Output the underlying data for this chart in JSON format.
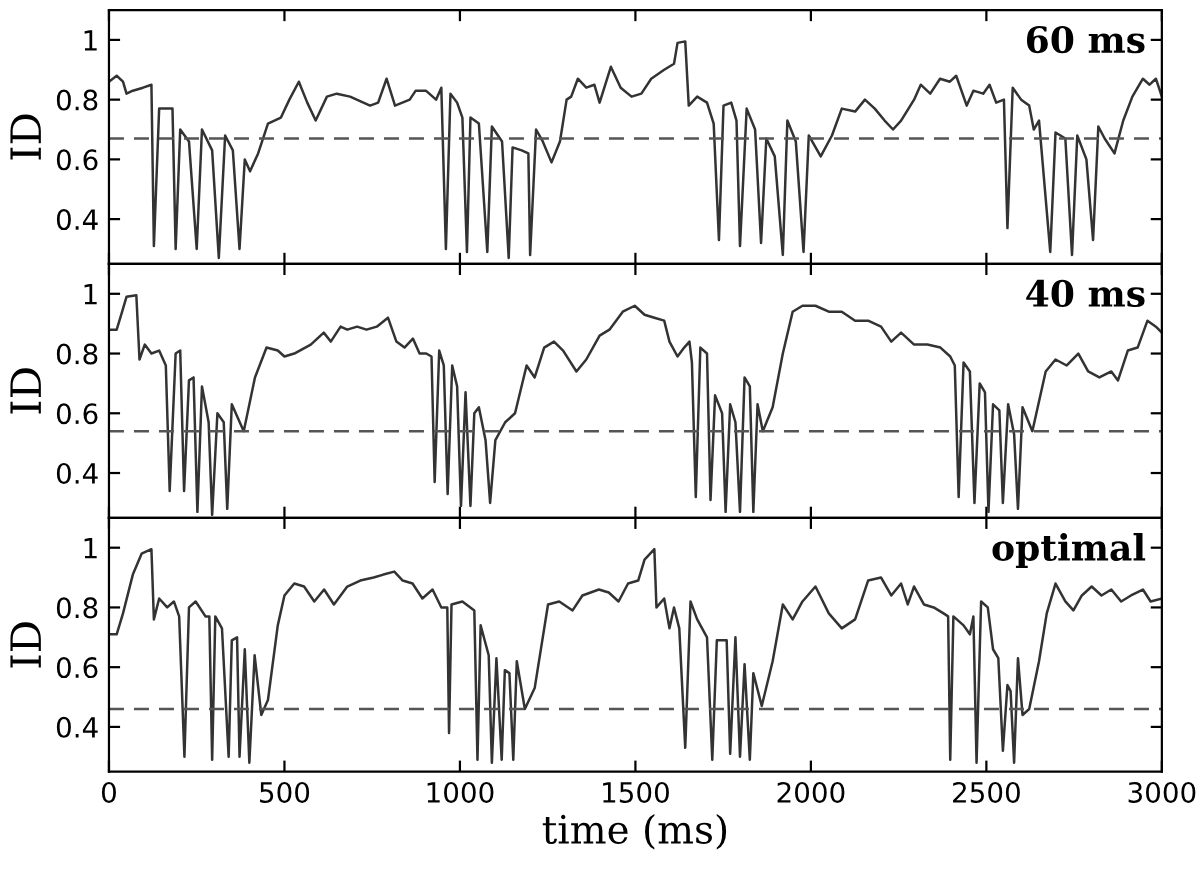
{
  "chart_data": [
    {
      "type": "line",
      "ylabel": "ID",
      "annotations": [
        "60 ms"
      ],
      "color": "#333333",
      "xlim": [
        0,
        3000
      ],
      "xticks": [
        0,
        500,
        1000,
        1500,
        2000,
        2500,
        3000
      ],
      "ylim": [
        0.25,
        1.1
      ],
      "yticks": [
        0.4,
        0.6,
        0.8,
        1
      ],
      "tick_labels": "y",
      "ref_lines": [
        {
          "axis": "y",
          "value": 0.67,
          "color": "#555555",
          "line_style": "dashed"
        }
      ],
      "x": [
        0,
        22,
        40,
        50,
        68,
        97,
        121,
        128,
        143,
        181,
        190,
        203,
        228,
        250,
        265,
        294,
        313,
        331,
        353,
        372,
        387,
        402,
        425,
        453,
        490,
        514,
        541,
        565,
        589,
        621,
        649,
        687,
        744,
        767,
        791,
        815,
        857,
        874,
        903,
        932,
        947,
        960,
        973,
        992,
        1007,
        1020,
        1030,
        1054,
        1078,
        1091,
        1120,
        1139,
        1150,
        1176,
        1195,
        1200,
        1217,
        1236,
        1261,
        1285,
        1304,
        1317,
        1336,
        1360,
        1383,
        1398,
        1430,
        1458,
        1489,
        1517,
        1545,
        1582,
        1610,
        1620,
        1642,
        1652,
        1676,
        1704,
        1723,
        1738,
        1751,
        1773,
        1788,
        1798,
        1817,
        1841,
        1858,
        1873,
        1897,
        1920,
        1933,
        1957,
        1979,
        1994,
        2028,
        2060,
        2088,
        2126,
        2154,
        2182,
        2210,
        2234,
        2257,
        2294,
        2313,
        2340,
        2368,
        2396,
        2414,
        2444,
        2463,
        2491,
        2509,
        2528,
        2550,
        2560,
        2575,
        2599,
        2622,
        2635,
        2650,
        2682,
        2697,
        2725,
        2744,
        2759,
        2785,
        2804,
        2819,
        2837,
        2865,
        2890,
        2916,
        2946,
        2965,
        2983,
        3000
      ],
      "values": [
        0.86,
        0.88,
        0.86,
        0.82,
        0.83,
        0.84,
        0.85,
        0.31,
        0.77,
        0.77,
        0.3,
        0.7,
        0.66,
        0.3,
        0.7,
        0.63,
        0.27,
        0.68,
        0.63,
        0.3,
        0.6,
        0.56,
        0.62,
        0.72,
        0.74,
        0.8,
        0.86,
        0.79,
        0.73,
        0.81,
        0.82,
        0.81,
        0.78,
        0.79,
        0.87,
        0.78,
        0.8,
        0.83,
        0.83,
        0.8,
        0.84,
        0.3,
        0.82,
        0.79,
        0.74,
        0.29,
        0.74,
        0.72,
        0.29,
        0.71,
        0.66,
        0.27,
        0.64,
        0.63,
        0.62,
        0.28,
        0.7,
        0.66,
        0.59,
        0.66,
        0.8,
        0.81,
        0.87,
        0.84,
        0.85,
        0.79,
        0.91,
        0.84,
        0.81,
        0.82,
        0.87,
        0.9,
        0.92,
        0.99,
        0.995,
        0.78,
        0.81,
        0.79,
        0.72,
        0.33,
        0.78,
        0.79,
        0.73,
        0.31,
        0.77,
        0.7,
        0.32,
        0.67,
        0.61,
        0.28,
        0.73,
        0.66,
        0.29,
        0.68,
        0.61,
        0.68,
        0.77,
        0.76,
        0.8,
        0.77,
        0.73,
        0.7,
        0.73,
        0.8,
        0.85,
        0.82,
        0.87,
        0.86,
        0.88,
        0.78,
        0.83,
        0.82,
        0.85,
        0.79,
        0.8,
        0.37,
        0.84,
        0.8,
        0.78,
        0.7,
        0.73,
        0.29,
        0.69,
        0.67,
        0.28,
        0.68,
        0.6,
        0.33,
        0.71,
        0.67,
        0.62,
        0.73,
        0.81,
        0.87,
        0.85,
        0.87,
        0.81
      ]
    },
    {
      "type": "line",
      "ylabel": "ID",
      "annotations": [
        "40 ms"
      ],
      "color": "#333333",
      "xlim": [
        0,
        3000
      ],
      "xticks": [
        0,
        500,
        1000,
        1500,
        2000,
        2500,
        3000
      ],
      "ylim": [
        0.25,
        1.1
      ],
      "yticks": [
        0.4,
        0.6,
        0.8,
        1
      ],
      "tick_labels": "y",
      "ref_lines": [
        {
          "axis": "y",
          "value": 0.54,
          "color": "#555555",
          "line_style": "dashed"
        }
      ],
      "x": [
        0,
        22,
        35,
        50,
        78,
        87,
        102,
        121,
        143,
        162,
        173,
        190,
        203,
        214,
        228,
        241,
        252,
        265,
        284,
        294,
        309,
        327,
        337,
        350,
        384,
        416,
        449,
        481,
        500,
        528,
        575,
        612,
        632,
        660,
        679,
        707,
        734,
        763,
        795,
        819,
        842,
        866,
        885,
        904,
        919,
        928,
        941,
        954,
        965,
        978,
        992,
        1003,
        1016,
        1030,
        1041,
        1054,
        1073,
        1086,
        1101,
        1129,
        1157,
        1190,
        1213,
        1240,
        1268,
        1294,
        1332,
        1360,
        1398,
        1426,
        1464,
        1498,
        1526,
        1554,
        1582,
        1597,
        1620,
        1639,
        1654,
        1661,
        1672,
        1685,
        1704,
        1714,
        1727,
        1747,
        1757,
        1770,
        1785,
        1798,
        1811,
        1826,
        1836,
        1848,
        1863,
        1891,
        1920,
        1948,
        1976,
        2013,
        2051,
        2088,
        2126,
        2163,
        2200,
        2229,
        2257,
        2294,
        2332,
        2369,
        2397,
        2410,
        2421,
        2435,
        2453,
        2466,
        2481,
        2496,
        2506,
        2519,
        2537,
        2547,
        2562,
        2579,
        2590,
        2603,
        2631,
        2669,
        2697,
        2729,
        2762,
        2790,
        2822,
        2856,
        2875,
        2903,
        2931,
        2959,
        2983,
        3000
      ],
      "values": [
        0.88,
        0.88,
        0.93,
        0.99,
        0.995,
        0.78,
        0.83,
        0.8,
        0.81,
        0.76,
        0.34,
        0.8,
        0.81,
        0.34,
        0.71,
        0.72,
        0.27,
        0.69,
        0.57,
        0.26,
        0.6,
        0.57,
        0.28,
        0.63,
        0.54,
        0.72,
        0.82,
        0.81,
        0.79,
        0.8,
        0.83,
        0.87,
        0.84,
        0.89,
        0.88,
        0.89,
        0.88,
        0.89,
        0.92,
        0.84,
        0.82,
        0.85,
        0.8,
        0.8,
        0.79,
        0.37,
        0.81,
        0.76,
        0.33,
        0.76,
        0.69,
        0.29,
        0.67,
        0.29,
        0.6,
        0.62,
        0.51,
        0.3,
        0.51,
        0.57,
        0.6,
        0.76,
        0.72,
        0.82,
        0.84,
        0.81,
        0.74,
        0.78,
        0.86,
        0.88,
        0.94,
        0.96,
        0.93,
        0.92,
        0.91,
        0.84,
        0.79,
        0.82,
        0.84,
        0.77,
        0.32,
        0.82,
        0.8,
        0.31,
        0.66,
        0.6,
        0.27,
        0.63,
        0.57,
        0.27,
        0.72,
        0.69,
        0.27,
        0.63,
        0.54,
        0.62,
        0.8,
        0.94,
        0.96,
        0.96,
        0.94,
        0.94,
        0.91,
        0.91,
        0.89,
        0.84,
        0.87,
        0.83,
        0.83,
        0.82,
        0.79,
        0.76,
        0.32,
        0.77,
        0.74,
        0.3,
        0.7,
        0.67,
        0.27,
        0.63,
        0.61,
        0.3,
        0.63,
        0.53,
        0.28,
        0.62,
        0.54,
        0.74,
        0.78,
        0.76,
        0.8,
        0.74,
        0.72,
        0.74,
        0.71,
        0.81,
        0.82,
        0.91,
        0.89,
        0.87
      ]
    },
    {
      "type": "line",
      "ylabel": "ID",
      "xlabel": "time (ms)",
      "annotations": [
        "optimal"
      ],
      "color": "#333333",
      "xlim": [
        0,
        3000
      ],
      "xticks": [
        0,
        500,
        1000,
        1500,
        2000,
        2500,
        3000
      ],
      "ylim": [
        0.25,
        1.1
      ],
      "yticks": [
        0.4,
        0.6,
        0.8,
        1
      ],
      "ref_lines": [
        {
          "axis": "y",
          "value": 0.46,
          "color": "#555555",
          "line_style": "dashed"
        }
      ],
      "x": [
        0,
        22,
        40,
        68,
        93,
        121,
        128,
        143,
        166,
        185,
        200,
        215,
        228,
        247,
        275,
        286,
        294,
        303,
        322,
        341,
        350,
        365,
        372,
        387,
        400,
        415,
        434,
        453,
        481,
        500,
        528,
        556,
        585,
        613,
        641,
        679,
        716,
        754,
        782,
        813,
        837,
        865,
        893,
        922,
        947,
        964,
        969,
        976,
        1007,
        1041,
        1050,
        1059,
        1082,
        1091,
        1104,
        1119,
        1128,
        1141,
        1152,
        1162,
        1185,
        1213,
        1251,
        1283,
        1321,
        1349,
        1396,
        1424,
        1452,
        1479,
        1508,
        1526,
        1554,
        1560,
        1582,
        1597,
        1610,
        1625,
        1642,
        1657,
        1676,
        1704,
        1719,
        1732,
        1760,
        1770,
        1785,
        1798,
        1811,
        1826,
        1836,
        1860,
        1891,
        1920,
        1948,
        1976,
        2013,
        2051,
        2088,
        2126,
        2163,
        2200,
        2229,
        2257,
        2276,
        2294,
        2322,
        2350,
        2378,
        2391,
        2397,
        2406,
        2435,
        2453,
        2463,
        2472,
        2485,
        2504,
        2519,
        2534,
        2547,
        2560,
        2569,
        2579,
        2590,
        2603,
        2622,
        2650,
        2672,
        2697,
        2725,
        2748,
        2772,
        2800,
        2828,
        2856,
        2884,
        2912,
        2946,
        2968,
        3000
      ],
      "values": [
        0.71,
        0.71,
        0.78,
        0.91,
        0.98,
        0.995,
        0.76,
        0.83,
        0.8,
        0.82,
        0.77,
        0.3,
        0.8,
        0.82,
        0.77,
        0.77,
        0.29,
        0.77,
        0.73,
        0.3,
        0.69,
        0.7,
        0.3,
        0.66,
        0.28,
        0.64,
        0.44,
        0.49,
        0.74,
        0.84,
        0.88,
        0.87,
        0.82,
        0.86,
        0.81,
        0.87,
        0.89,
        0.9,
        0.91,
        0.92,
        0.89,
        0.88,
        0.83,
        0.86,
        0.8,
        0.8,
        0.38,
        0.81,
        0.82,
        0.79,
        0.29,
        0.74,
        0.64,
        0.28,
        0.63,
        0.29,
        0.59,
        0.58,
        0.29,
        0.62,
        0.46,
        0.53,
        0.81,
        0.82,
        0.79,
        0.84,
        0.86,
        0.85,
        0.82,
        0.88,
        0.89,
        0.96,
        0.995,
        0.8,
        0.83,
        0.73,
        0.8,
        0.73,
        0.33,
        0.82,
        0.76,
        0.7,
        0.29,
        0.69,
        0.69,
        0.31,
        0.7,
        0.3,
        0.61,
        0.29,
        0.58,
        0.47,
        0.62,
        0.81,
        0.76,
        0.82,
        0.87,
        0.78,
        0.73,
        0.76,
        0.89,
        0.9,
        0.84,
        0.88,
        0.81,
        0.87,
        0.81,
        0.8,
        0.78,
        0.77,
        0.29,
        0.77,
        0.74,
        0.71,
        0.77,
        0.28,
        0.82,
        0.8,
        0.66,
        0.63,
        0.32,
        0.54,
        0.52,
        0.28,
        0.63,
        0.44,
        0.46,
        0.62,
        0.78,
        0.88,
        0.82,
        0.79,
        0.84,
        0.87,
        0.84,
        0.86,
        0.82,
        0.84,
        0.86,
        0.82,
        0.83
      ]
    }
  ]
}
